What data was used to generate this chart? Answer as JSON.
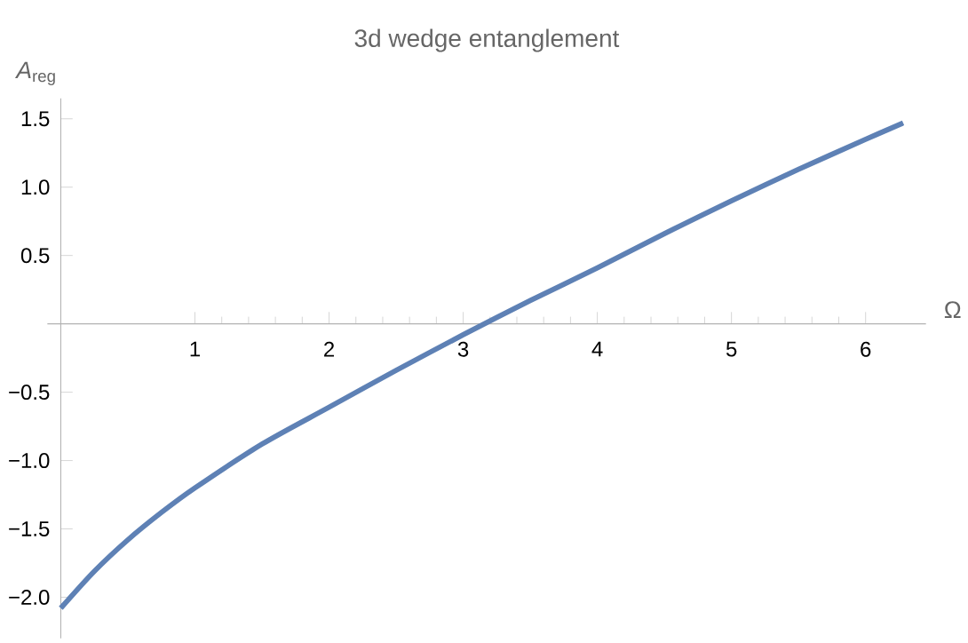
{
  "chart_data": {
    "type": "line",
    "title": "3d wedge entanglement",
    "xlabel": "Ω",
    "ylabel": "*A*$_{reg}$",
    "x": [
      0,
      0.25,
      0.5,
      0.75,
      1,
      1.5,
      2,
      2.5,
      3,
      3.5,
      4,
      4.5,
      5,
      5.5,
      6,
      6.28
    ],
    "series": [
      {
        "color": "#5e81b5",
        "values": [
          -2.08,
          -1.81,
          -1.58,
          -1.38,
          -1.2,
          -0.88,
          -0.61,
          -0.34,
          -0.08,
          0.17,
          0.41,
          0.66,
          0.9,
          1.13,
          1.35,
          1.47
        ]
      }
    ],
    "xlim": [
      -0.1,
      6.45
    ],
    "ylim": [
      -2.3,
      1.65
    ],
    "xticks": [
      1,
      2,
      3,
      4,
      5,
      6
    ],
    "yticks": [
      {
        "value": -2,
        "label": "−2.0"
      },
      {
        "value": -1.5,
        "label": "−1.5"
      },
      {
        "value": -1,
        "label": "−1.0"
      },
      {
        "value": -0.5,
        "label": "−0.5"
      },
      0.5,
      {
        "value": 1,
        "label": "1.0"
      },
      1.5
    ],
    "grid": false,
    "marker": "none",
    "line_style": "solid"
  }
}
